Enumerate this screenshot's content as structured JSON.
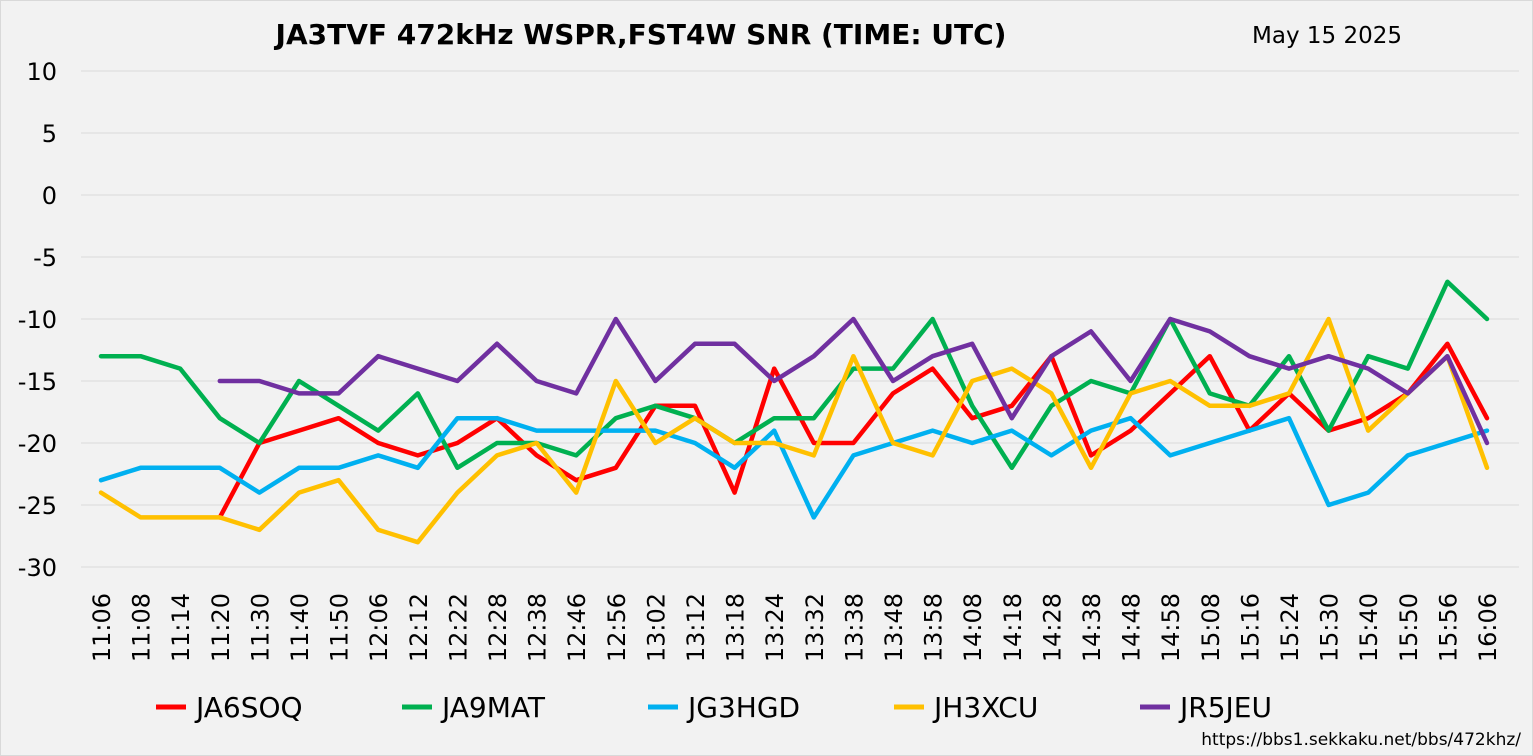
{
  "chart_data": {
    "type": "line",
    "title": "JA3TVF 472kHz WSPR,FST4W SNR (TIME: UTC)",
    "date": "May 15 2025",
    "footer_url": "https://bbs1.sekkaku.net/bbs/472khz/",
    "ylim": [
      -30,
      10
    ],
    "yticks": [
      10,
      5,
      0,
      -5,
      -10,
      -15,
      -20,
      -25,
      -30
    ],
    "grid": true,
    "legend_position": "bottom",
    "categories": [
      "11:06",
      "11:08",
      "11:14",
      "11:20",
      "11:30",
      "11:40",
      "11:50",
      "12:06",
      "12:12",
      "12:22",
      "12:28",
      "12:38",
      "12:46",
      "12:56",
      "13:02",
      "13:12",
      "13:18",
      "13:24",
      "13:32",
      "13:38",
      "13:48",
      "13:58",
      "14:08",
      "14:18",
      "14:28",
      "14:38",
      "14:48",
      "14:58",
      "15:08",
      "15:16",
      "15:24",
      "15:30",
      "15:40",
      "15:50",
      "15:56",
      "16:06"
    ],
    "series": [
      {
        "name": "JA6SOQ",
        "color": "#ff0000",
        "values": [
          null,
          null,
          null,
          -26,
          -20,
          -19,
          -18,
          -20,
          -21,
          -20,
          -18,
          -21,
          -23,
          -22,
          -17,
          -17,
          -24,
          -14,
          -20,
          -20,
          -16,
          -14,
          -18,
          -17,
          -13,
          -21,
          -19,
          -16,
          -13,
          -19,
          -16,
          -19,
          -18,
          -16,
          -12,
          -18
        ]
      },
      {
        "name": "JA9MAT",
        "color": "#00b050",
        "values": [
          -13,
          -13,
          -14,
          -18,
          -20,
          -15,
          -17,
          -19,
          -16,
          -22,
          -20,
          -20,
          -21,
          -18,
          -17,
          -18,
          -20,
          -18,
          -18,
          -14,
          -14,
          -10,
          -17,
          -22,
          -17,
          -15,
          -16,
          -10,
          -16,
          -17,
          -13,
          -19,
          -13,
          -14,
          -7,
          -10
        ]
      },
      {
        "name": "JG3HGD",
        "color": "#00b0f0",
        "values": [
          -23,
          -22,
          -22,
          -22,
          -24,
          -22,
          -22,
          -21,
          -22,
          -18,
          -18,
          -19,
          -19,
          -19,
          -19,
          -20,
          -22,
          -19,
          -26,
          -21,
          -20,
          -19,
          -20,
          -19,
          -21,
          -19,
          -18,
          -21,
          -20,
          -19,
          -18,
          -25,
          -24,
          -21,
          -20,
          -19
        ]
      },
      {
        "name": "JH3XCU",
        "color": "#ffc000",
        "values": [
          -24,
          -26,
          -26,
          -26,
          -27,
          -24,
          -23,
          -27,
          -28,
          -24,
          -21,
          -20,
          -24,
          -15,
          -20,
          -18,
          -20,
          -20,
          -21,
          -13,
          -20,
          -21,
          -15,
          -14,
          -16,
          -22,
          -16,
          -15,
          -17,
          -17,
          -16,
          -10,
          -19,
          -16,
          -13,
          -22
        ]
      },
      {
        "name": "JR5JEU",
        "color": "#7030a0",
        "values": [
          null,
          null,
          null,
          -15,
          -15,
          -16,
          -16,
          -13,
          -14,
          -15,
          -12,
          -15,
          -16,
          -10,
          -15,
          -12,
          -12,
          -15,
          -13,
          -10,
          -15,
          -13,
          -12,
          -18,
          -13,
          -11,
          -15,
          -10,
          -11,
          -13,
          -14,
          -13,
          -14,
          -16,
          -13,
          -20
        ]
      }
    ]
  }
}
